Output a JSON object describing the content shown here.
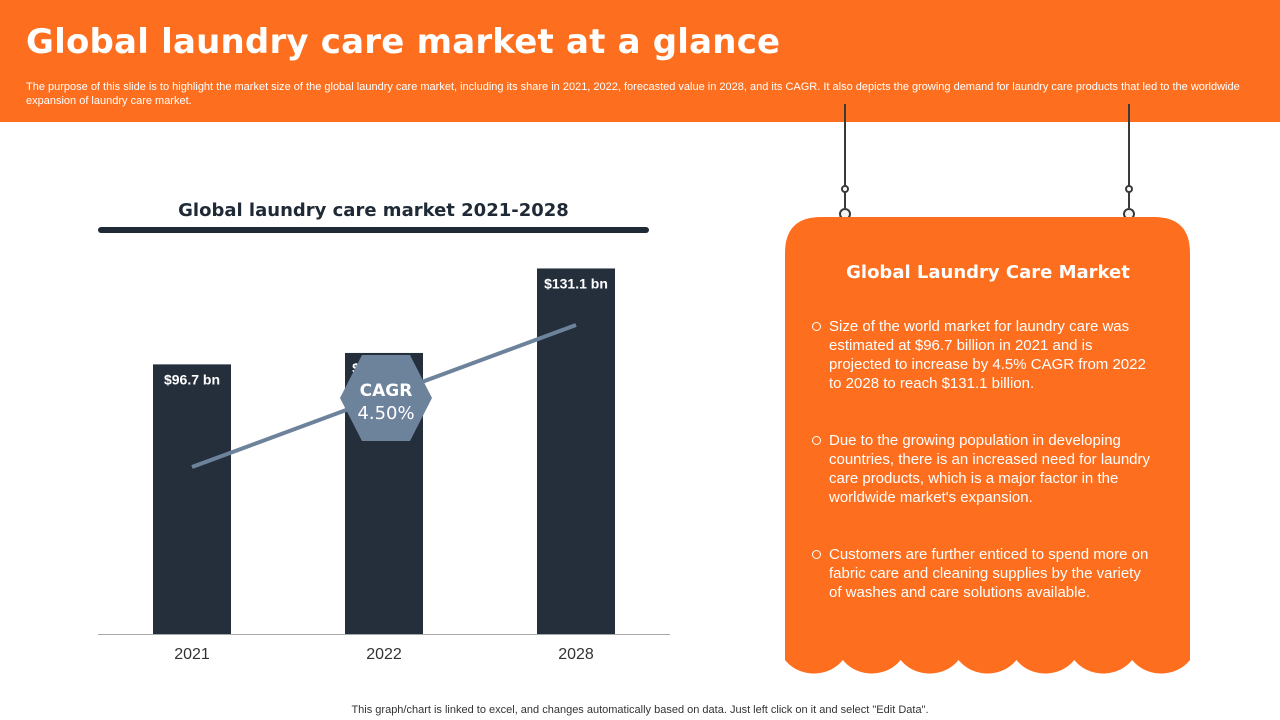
{
  "header": {
    "title": "Global laundry care market at a glance",
    "subtitle": "The purpose of this slide is to highlight the market size of the global laundry care market, including its share in 2021, 2022, forecasted value in 2028, and its CAGR. It also depicts the growing demand for laundry care products that led to the worldwide expansion of laundry care market."
  },
  "chart_data": {
    "type": "bar",
    "title": "Global laundry care market 2021-2028",
    "categories": [
      "2021",
      "2022",
      "2028"
    ],
    "values": [
      96.7,
      100.8,
      131.1
    ],
    "data_labels": [
      "$96.7 bn",
      "$100.8 bn",
      "$131.1 bn"
    ],
    "unit": "bn",
    "ylim": [
      0,
      170
    ],
    "xlabel": "",
    "ylabel": "",
    "grid": false,
    "legend": "none",
    "bar_color": "#252f3b",
    "trend_line_color": "#6d829b",
    "cagr": {
      "label": "CAGR",
      "value": "4.50%"
    }
  },
  "panel": {
    "title": "Global Laundry Care Market",
    "bullets": [
      "Size of the world market for laundry  care was estimated at $96.7 billion in 2021 and is projected to increase by 4.5% CAGR from 2022 to 2028 to reach $131.1 billion.",
      "Due to the growing population in developing countries, there is an increased need for laundry  care products, which is a major factor in the worldwide market's expansion.",
      "Customers are further  enticed to spend more on fabric care and cleaning supplies by the variety of washes and care solutions available."
    ],
    "color": "#fd6f1f"
  },
  "footnote": "This graph/chart is linked to excel,  and changes automatically based on data. Just left click on it and select \"Edit Data\"."
}
